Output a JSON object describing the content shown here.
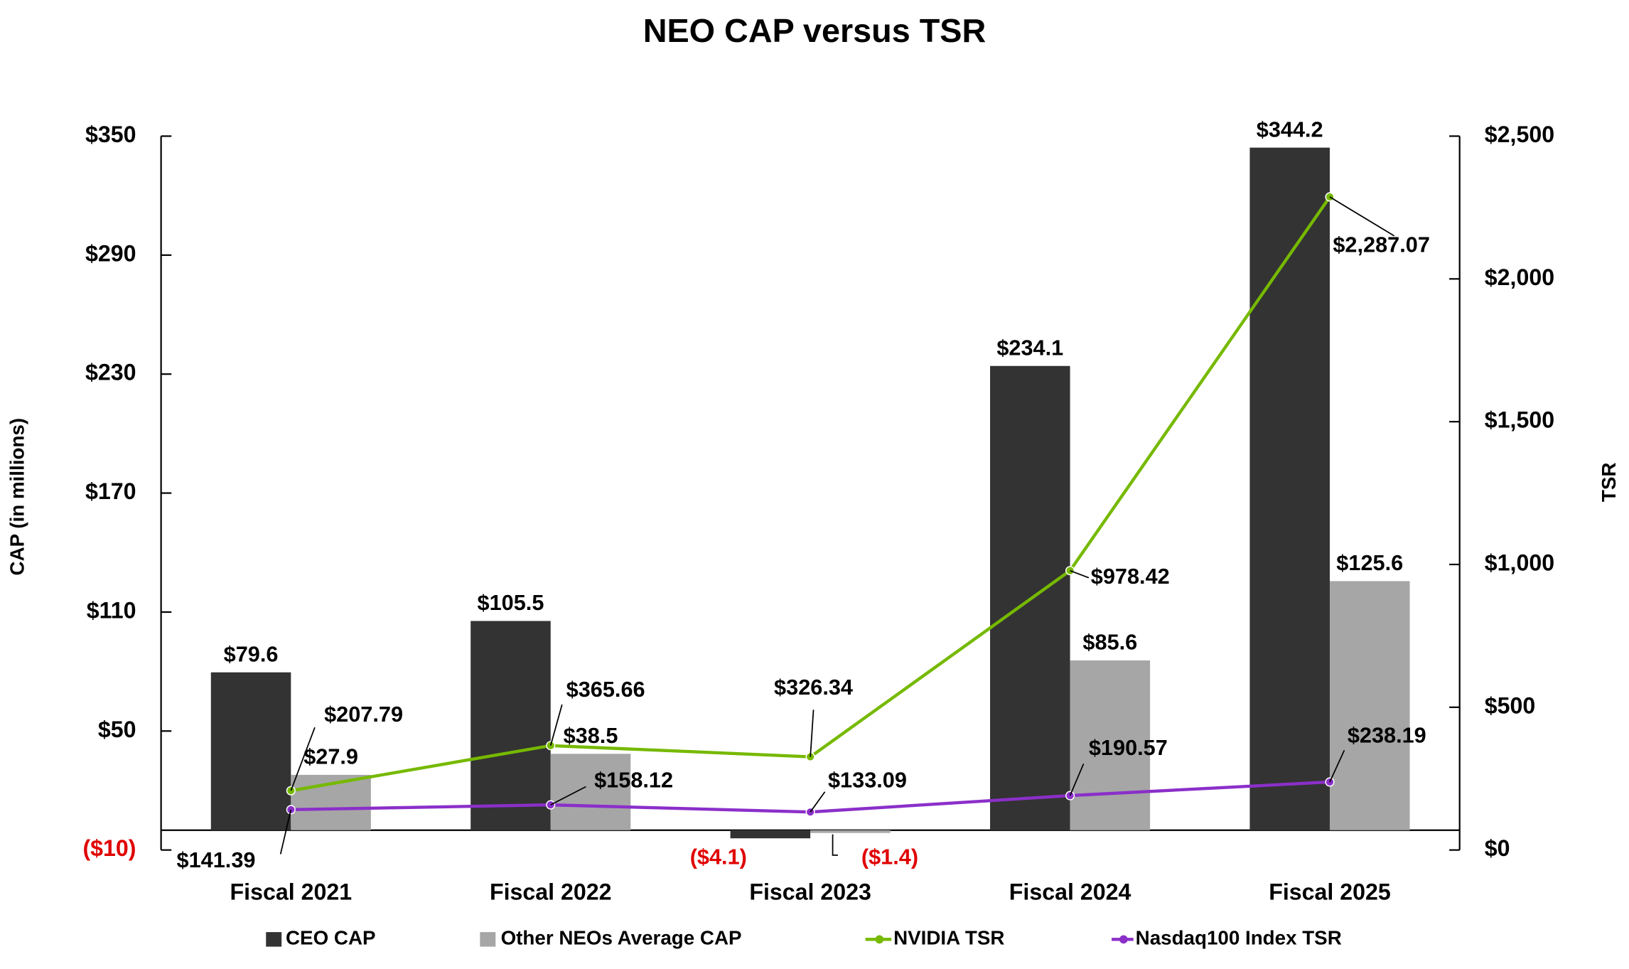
{
  "chart_data": {
    "type": "bar-line",
    "title": "NEO CAP versus TSR",
    "ylabel": "CAP (in millions)",
    "y2label": "TSR",
    "categories": [
      "Fiscal 2021",
      "Fiscal 2022",
      "Fiscal 2023",
      "Fiscal 2024",
      "Fiscal 2025"
    ],
    "ylim": [
      -10,
      350
    ],
    "yticks": [
      {
        "value": 350,
        "label": "$350"
      },
      {
        "value": 290,
        "label": "$290"
      },
      {
        "value": 230,
        "label": "$230"
      },
      {
        "value": 170,
        "label": "$170"
      },
      {
        "value": 110,
        "label": "$110"
      },
      {
        "value": 50,
        "label": "$50"
      },
      {
        "value": -10,
        "label": "($10)"
      }
    ],
    "y2lim": [
      0,
      2500
    ],
    "y2ticks": [
      {
        "value": 2500,
        "label": "$2,500"
      },
      {
        "value": 2000,
        "label": "$2,000"
      },
      {
        "value": 1500,
        "label": "$1,500"
      },
      {
        "value": 1000,
        "label": "$1,000"
      },
      {
        "value": 500,
        "label": "$500"
      },
      {
        "value": 0,
        "label": "$0"
      }
    ],
    "series": [
      {
        "name": "CEO CAP",
        "type": "bar",
        "color": "#333333",
        "values": [
          79.6,
          105.5,
          -4.1,
          234.1,
          344.2
        ],
        "value_labels": [
          "$79.6",
          "$105.5",
          "($4.1)",
          "$234.1",
          "$344.2"
        ]
      },
      {
        "name": "Other NEOs Average CAP",
        "type": "bar",
        "color": "#a6a6a6",
        "values": [
          27.9,
          38.5,
          -1.4,
          85.6,
          125.6
        ],
        "value_labels": [
          "$27.9",
          "$38.5",
          "($1.4)",
          "$85.6",
          "$125.6"
        ]
      },
      {
        "name": "NVIDIA TSR",
        "type": "line",
        "axis": "y2",
        "color": "#76b900",
        "values": [
          207.79,
          365.66,
          326.34,
          978.42,
          2287.07
        ],
        "value_labels": [
          "$207.79",
          "$365.66",
          "$326.34",
          "$978.42",
          "$2,287.07"
        ]
      },
      {
        "name": "Nasdaq100 Index TSR",
        "type": "line",
        "axis": "y2",
        "color": "#8b2fc9",
        "values": [
          141.39,
          158.12,
          133.09,
          190.57,
          238.19
        ],
        "value_labels": [
          "$141.39",
          "$158.12",
          "$133.09",
          "$190.57",
          "$238.19"
        ]
      }
    ],
    "negative_color": "#e00000"
  }
}
